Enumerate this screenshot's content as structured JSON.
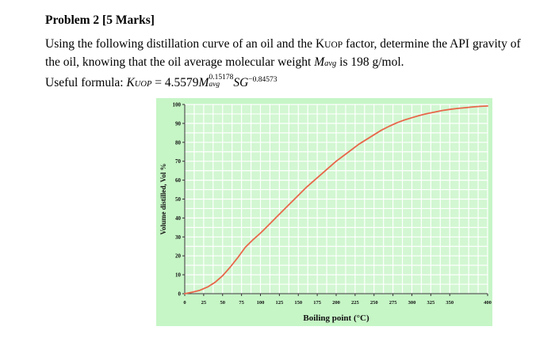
{
  "problem": {
    "title": "Problem 2 [5 Marks]",
    "line1_a": "Using the following distillation curve of an oil and the K",
    "line1_sub": "UOP",
    "line1_b": " factor, determine the API gravity of",
    "line2_a": "the oil, knowing that the oil average molecular weight ",
    "line2_var": "M",
    "line2_var_sub": "avg",
    "line2_b": " is 198 g/mol."
  },
  "formula": {
    "label": "Useful formula: ",
    "lhs": "K",
    "lhs_sub": "UOP",
    "eq": " = 4.5579",
    "m": "M",
    "m_sup": "0.15178",
    "m_sub": "avg",
    "sg": "SG",
    "sg_sup": "−0.84573"
  },
  "colors": {
    "chart_background": "#c6f5c6",
    "plot_background": "#d2f7d2",
    "grid": "#ffffff",
    "curve": "#e8664a"
  },
  "chart_data": {
    "type": "line",
    "title": "",
    "xlabel": "Boiling point (°C)",
    "ylabel": "Volume distilled, Vol %",
    "xlim": [
      0,
      400
    ],
    "ylim": [
      0,
      100
    ],
    "x_ticks": [
      "0",
      "25",
      "50",
      "75",
      "100",
      "125",
      "150",
      "175",
      "200",
      "225",
      "250",
      "275",
      "300",
      "325",
      "350",
      "400"
    ],
    "y_ticks": [
      "0",
      "10",
      "20",
      "30",
      "40",
      "50",
      "60",
      "70",
      "80",
      "90",
      "100"
    ],
    "grid": true,
    "legend": "none",
    "series": [
      {
        "x": [
          0,
          10,
          20,
          30,
          40,
          50,
          60,
          70,
          80,
          90,
          100,
          110,
          120,
          130,
          140,
          150,
          160,
          170,
          180,
          190,
          200,
          210,
          220,
          230,
          240,
          250,
          260,
          270,
          280,
          290,
          300,
          310,
          320,
          330,
          340,
          350,
          360,
          370,
          380,
          390,
          400
        ],
        "y": [
          0,
          0.8,
          1.8,
          3.5,
          6,
          9.5,
          14,
          19,
          24.5,
          28.5,
          32,
          36,
          40,
          44,
          48,
          52,
          56,
          59.5,
          63,
          66.5,
          70,
          73,
          76,
          79,
          81.5,
          84,
          86.5,
          88.5,
          90.3,
          91.8,
          93,
          94.2,
          95.2,
          96,
          96.8,
          97.4,
          97.9,
          98.3,
          98.7,
          99,
          99.2
        ]
      }
    ]
  }
}
